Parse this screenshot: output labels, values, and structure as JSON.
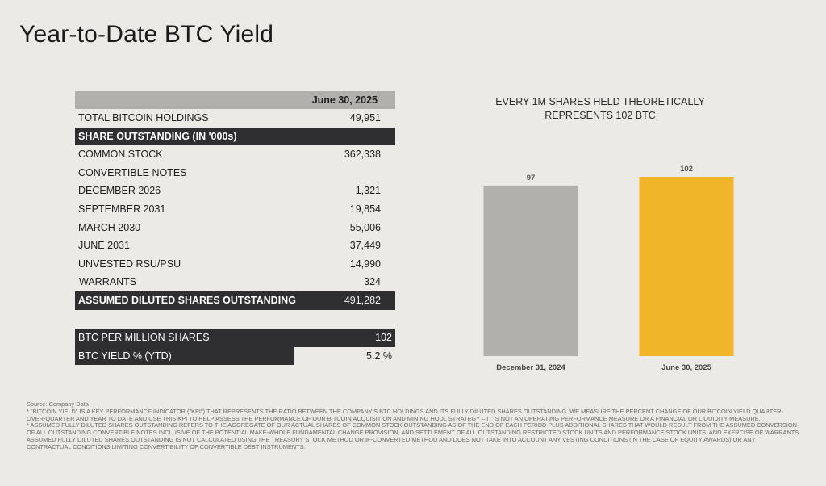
{
  "title": "Year-to-Date BTC Yield",
  "table": {
    "header_value": "June 30, 2025",
    "rows": [
      {
        "label": "TOTAL BITCOIN HOLDINGS",
        "value": "49,951"
      },
      {
        "label": "SHARE OUTSTANDING (IN '000s)",
        "value": ""
      },
      {
        "label": "COMMON STOCK",
        "value": "362,338"
      },
      {
        "label": "CONVERTIBLE NOTES",
        "value": ""
      },
      {
        "label": "DECEMBER 2026",
        "value": "1,321"
      },
      {
        "label": "SEPTEMBER 2031",
        "value": "19,854"
      },
      {
        "label": "MARCH 2030",
        "value": "55,006"
      },
      {
        "label": "JUNE 2031",
        "value": "37,449"
      },
      {
        "label": "UNVESTED RSU/PSU",
        "value": "14,990"
      },
      {
        "label": "WARRANTS",
        "value": "324"
      },
      {
        "label": "ASSUMED DILUTED SHARES OUTSTANDING",
        "value": "491,282"
      }
    ]
  },
  "metrics": [
    {
      "label": "BTC PER MILLION SHARES",
      "value": "102"
    },
    {
      "label": "BTC YIELD % (YTD)",
      "value": "5.2 %"
    }
  ],
  "chart_data": {
    "type": "bar",
    "title": "EVERY 1M SHARES HELD THEORETICALLY REPRESENTS 102 BTC",
    "title_lines": [
      "EVERY 1M SHARES HELD THEORETICALLY",
      "REPRESENTS 102 BTC"
    ],
    "categories": [
      "December 31, 2024",
      "June 30, 2025"
    ],
    "values": [
      97,
      102
    ],
    "data_labels": [
      "97",
      "102"
    ],
    "colors": [
      "#b1b0ad",
      "#f1b52a"
    ],
    "ylim": [
      0,
      102
    ],
    "grid": false
  },
  "footnotes": {
    "source": "Source: Company Data",
    "note1": "* \"BITCOIN YIELD\" IS A KEY PERFORMANCE INDICATOR (\"KPI\") THAT REPRESENTS THE RATIO BETWEEN THE COMPANY'S BTC HOLDINGS AND ITS FULLY DILUTED SHARES OUTSTANDING. WE MEASURE THE PERCENT CHANGE OF OUR BITCOIN YIELD QUARTER-OVER-QUARTER AND YEAR TO DATE AND USE THIS KPI TO HELP ASSESS THE PERFORMANCE OF OUR BITCOIN ACQUISITION AND MINING HODL STRATEGY – IT IS NOT AN OPERATING PERFORMANCE MEASURE OR A FINANCIAL OR LIQUIDITY MEASURE.",
    "note2": "* ASSUMED FULLY DILUTED SHARES OUTSTANDING REFERS TO THE AGGREGATE OF OUR ACTUAL SHARES OF COMMON STOCK OUTSTANDING AS OF THE END OF EACH PERIOD PLUS ADDITIONAL SHARES THAT WOULD RESULT FROM THE ASSUMED CONVERSION OF ALL OUTSTANDING CONVERTIBLE NOTES INCLUSIVE OF THE POTENTIAL MAKE-WHOLE FUNDAMENTAL CHANGE PROVISION, AND SETTLEMENT OF ALL OUTSTANDING RESTRICTED STOCK UNITS AND PERFORMANCE STOCK UNITS, AND EXERCISE OF WARRANTS. ASSUMED FULLY DILUTED SHARES OUTSTANDING IS NOT CALCULATED USING THE TREASURY STOCK METHOD OR IF-CONVERTED METHOD AND DOES NOT TAKE INTO ACCOUNT ANY VESTING CONDITIONS (IN THE CASE OF EQUITY AWARDS) OR ANY CONTRACTUAL CONDITIONS LIMITING CONVERTIBILITY OF CONVERTIBLE DEBT INSTRUMENTS."
  }
}
